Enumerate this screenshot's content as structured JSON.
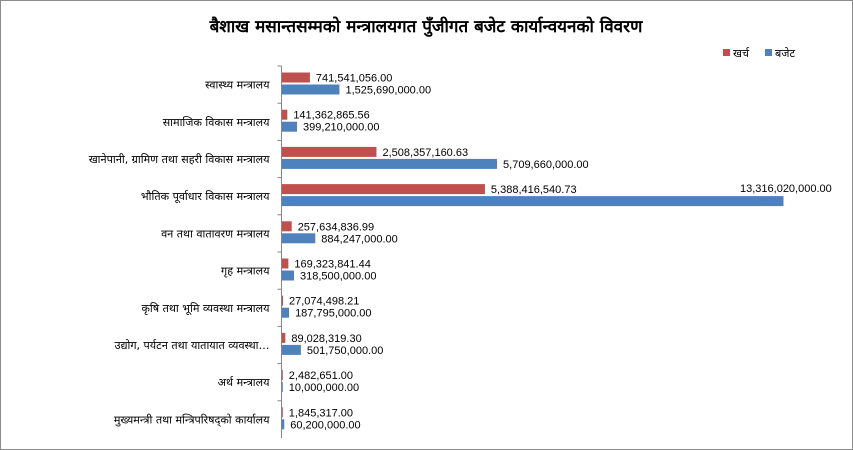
{
  "chart_data": {
    "type": "bar",
    "orientation": "horizontal",
    "title": "बैशाख मसान्तसम्मको मन्त्रालयगत पुँजीगत बजेट कार्यान्वयनको विवरण",
    "categories": [
      "स्वास्थ्य मन्त्रालय",
      "सामाजिक विकास मन्त्रालय",
      "खानेपानी, ग्रामिण तथा सहरी विकास मन्त्रालय",
      "भौतिक पूर्वाधार विकास मन्त्रालय",
      "वन तथा वातावरण मन्त्रालय",
      "गृह मन्त्रालय",
      "कृषि तथा भूमि व्यवस्था मन्त्रालय",
      "उद्योग, पर्यटन तथा यातायात व्यवस्था…",
      "अर्थ मन्त्रालय",
      "मुख्यमन्त्री तथा मन्त्रिपरिषद्को कार्यालय"
    ],
    "series": [
      {
        "name": "खर्च",
        "color": "#c0504d",
        "values": [
          741541056.0,
          141362865.56,
          2508357160.63,
          5388416540.73,
          257634836.99,
          169323841.44,
          27074498.21,
          89028319.3,
          2482651.0,
          1845317.0
        ],
        "labels": [
          "741,541,056.00",
          "141,362,865.56",
          "2,508,357,160.63",
          "5,388,416,540.73",
          "257,634,836.99",
          "169,323,841.44",
          "27,074,498.21",
          "89,028,319.30",
          "2,482,651.00",
          "1,845,317.00"
        ]
      },
      {
        "name": "बजेट",
        "color": "#4f81bd",
        "values": [
          1525690000.0,
          399210000.0,
          5709660000.0,
          13316020000.0,
          884247000.0,
          318500000.0,
          187795000.0,
          501750000.0,
          10000000.0,
          60200000.0
        ],
        "labels": [
          "1,525,690,000.00",
          "399,210,000.00",
          "5,709,660,000.00",
          "13,316,020,000.00",
          "884,247,000.00",
          "318,500,000.00",
          "187,795,000.00",
          "501,750,000.00",
          "10,000,000.00",
          "60,200,000.00"
        ]
      }
    ],
    "xlim": [
      0,
      13316020000
    ],
    "grid": false,
    "legend_position": "top-right"
  }
}
